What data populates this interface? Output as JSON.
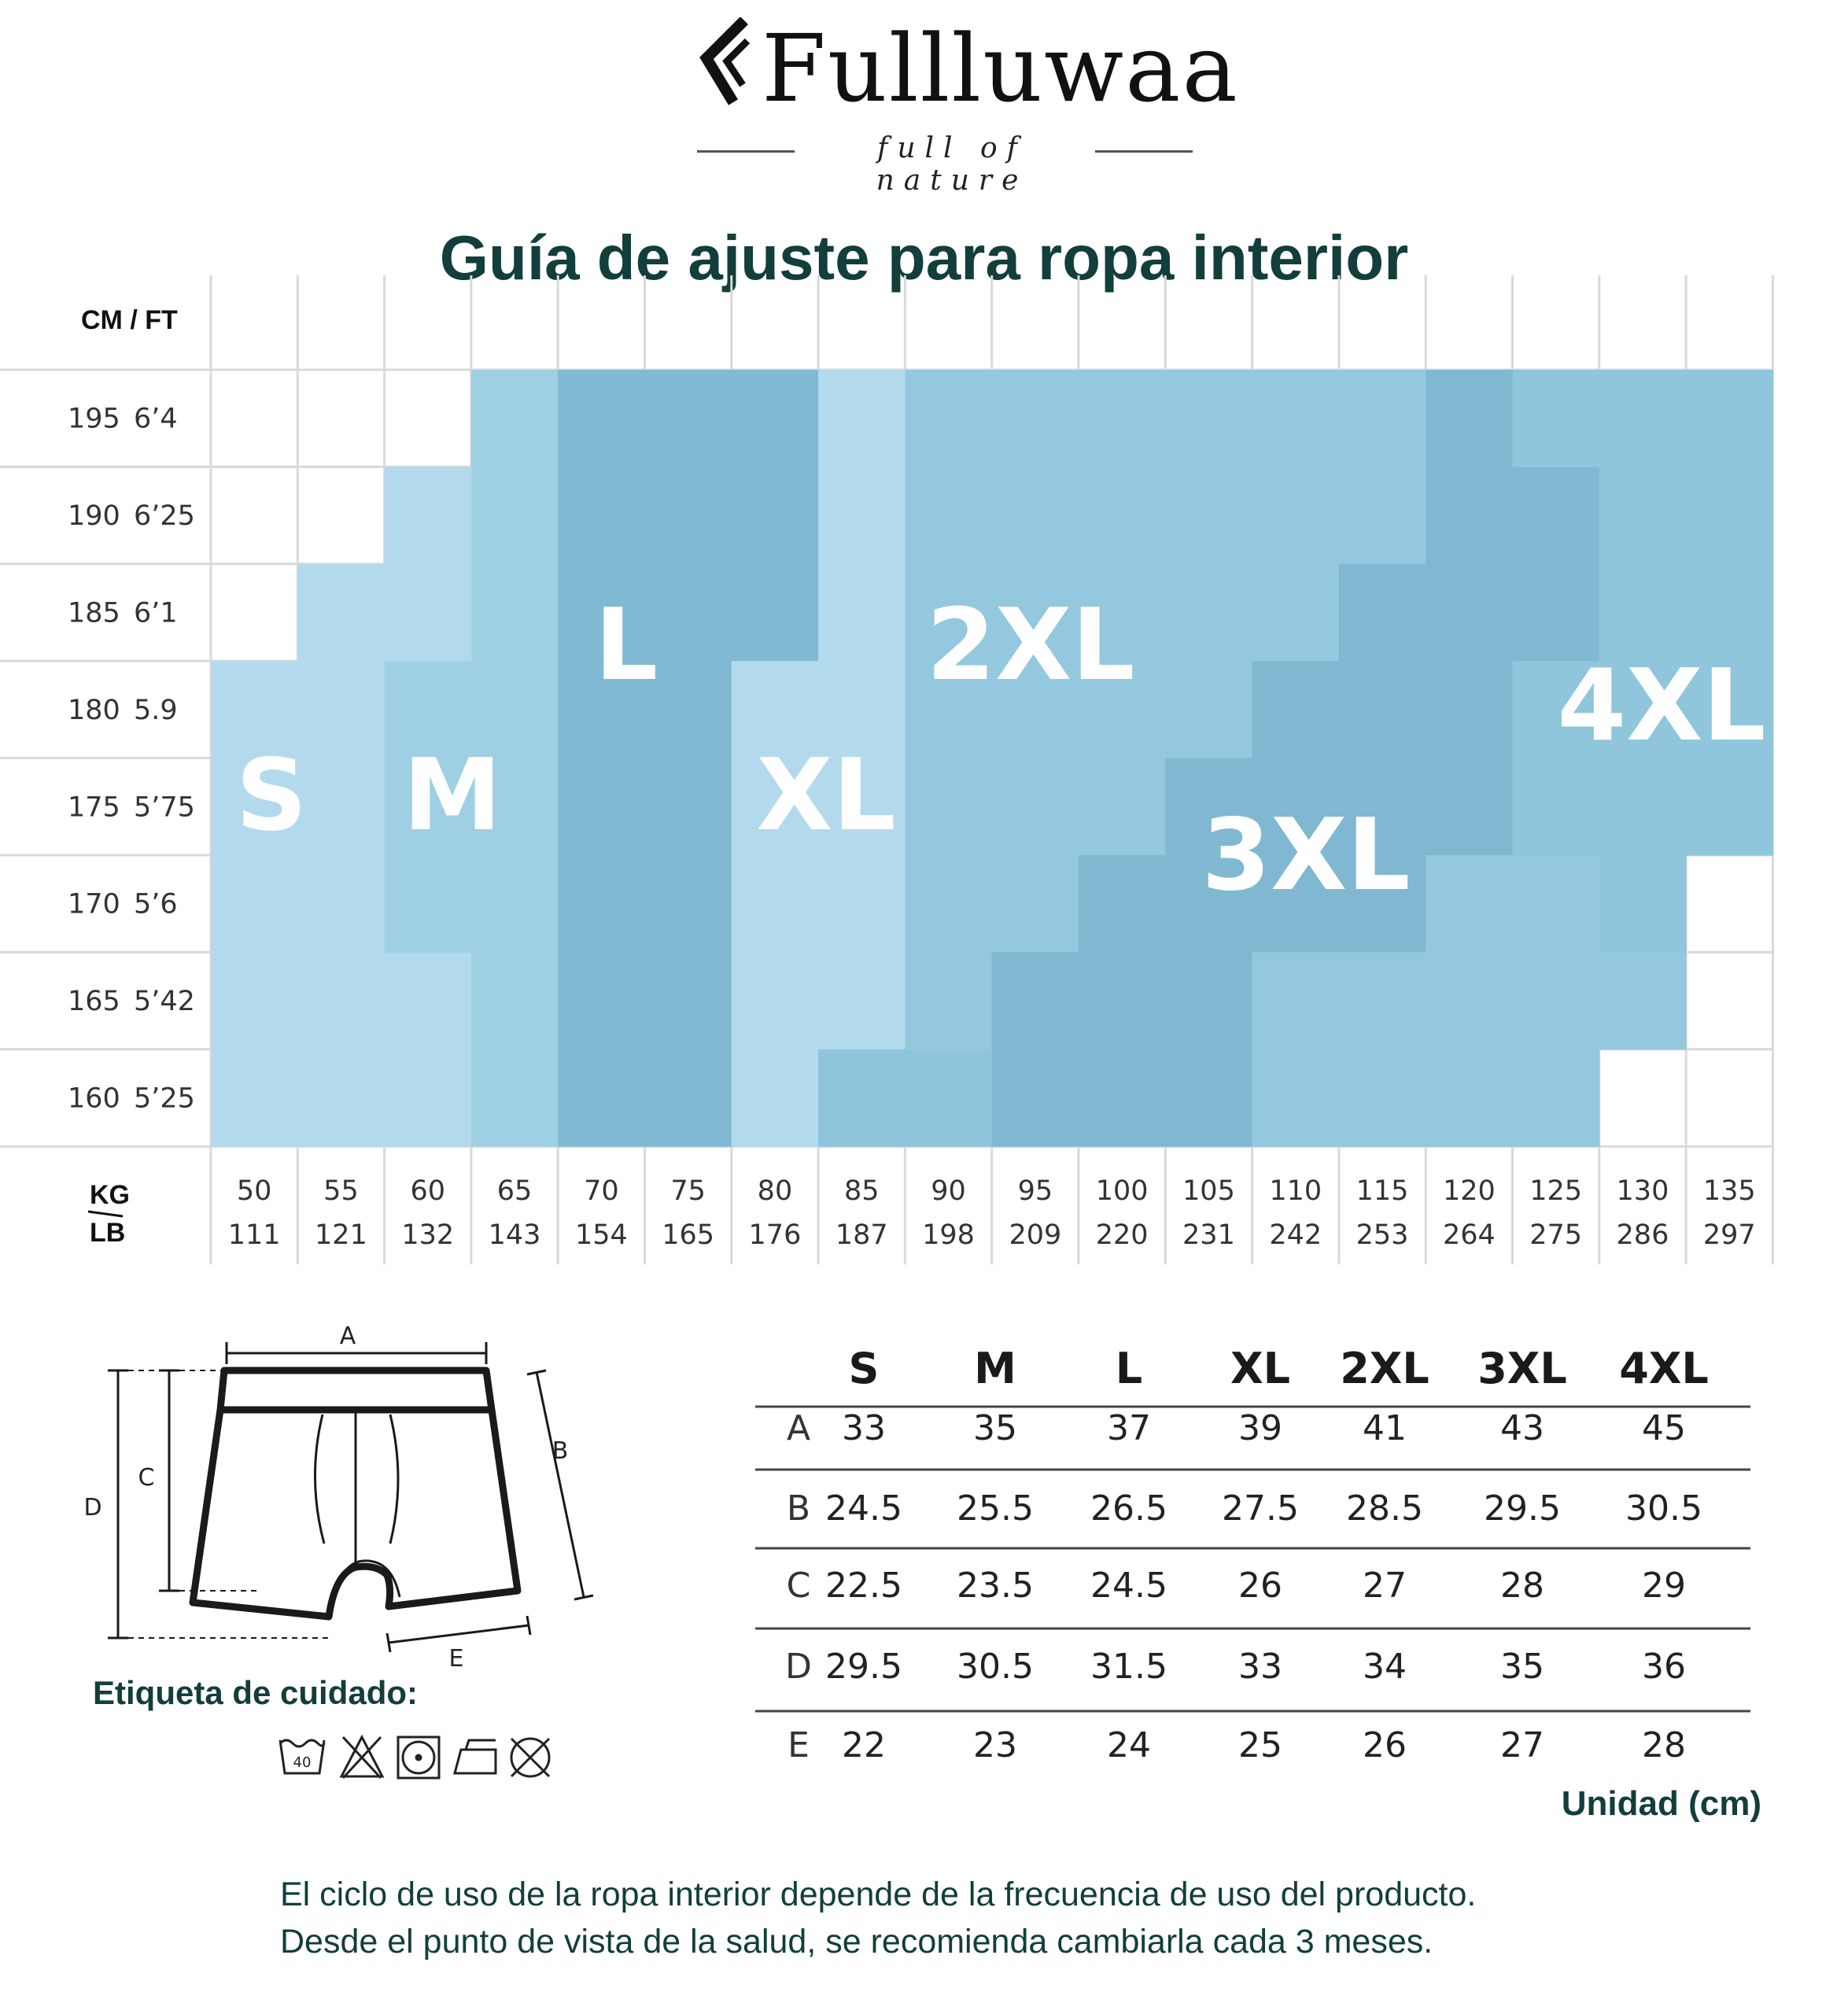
{
  "brand": {
    "name": "Fullluwaa",
    "tagline": "full of nature"
  },
  "title": "Guía de ajuste para ropa interior",
  "height_axis": {
    "label": "CM / FT",
    "rows": [
      {
        "cm": "195",
        "ft": "6’4"
      },
      {
        "cm": "190",
        "ft": "6’25"
      },
      {
        "cm": "185",
        "ft": "6’1"
      },
      {
        "cm": "180",
        "ft": "5.9"
      },
      {
        "cm": "175",
        "ft": "5’75"
      },
      {
        "cm": "170",
        "ft": "5’6"
      },
      {
        "cm": "165",
        "ft": "5’42"
      },
      {
        "cm": "160",
        "ft": "5’25"
      }
    ]
  },
  "weight_axis": {
    "label_top": "KG",
    "label_bottom": "LB",
    "cols": [
      {
        "kg": "50",
        "lb": "111"
      },
      {
        "kg": "55",
        "lb": "121"
      },
      {
        "kg": "60",
        "lb": "132"
      },
      {
        "kg": "65",
        "lb": "143"
      },
      {
        "kg": "70",
        "lb": "154"
      },
      {
        "kg": "75",
        "lb": "165"
      },
      {
        "kg": "80",
        "lb": "176"
      },
      {
        "kg": "85",
        "lb": "187"
      },
      {
        "kg": "90",
        "lb": "198"
      },
      {
        "kg": "95",
        "lb": "209"
      },
      {
        "kg": "100",
        "lb": "220"
      },
      {
        "kg": "105",
        "lb": "231"
      },
      {
        "kg": "110",
        "lb": "242"
      },
      {
        "kg": "115",
        "lb": "253"
      },
      {
        "kg": "120",
        "lb": "264"
      },
      {
        "kg": "125",
        "lb": "275"
      },
      {
        "kg": "130",
        "lb": "286"
      },
      {
        "kg": "135",
        "lb": "297"
      }
    ]
  },
  "fit_zones": [
    {
      "size": "S",
      "color": "#b3daec",
      "columns": [
        [
          0,
          0,
          4
        ],
        [
          1,
          0,
          5
        ],
        [
          2,
          0,
          7
        ],
        [
          3,
          3,
          7
        ]
      ]
    },
    {
      "size": "M",
      "color": "#9fcfe3",
      "columns": [
        [
          2,
          0,
          3
        ],
        [
          3,
          0,
          3
        ],
        [
          4,
          0,
          7
        ],
        [
          5,
          0,
          7
        ]
      ]
    },
    {
      "size": "L",
      "color": "#7fb9d3",
      "columns": [
        [
          6,
          0,
          7
        ],
        [
          7,
          0,
          7
        ],
        [
          8,
          3,
          7
        ],
        [
          9,
          3,
          7
        ]
      ]
    },
    {
      "size": "XL",
      "color": "#b3daec",
      "columns": [
        [
          8,
          0,
          3
        ],
        [
          9,
          0,
          3
        ],
        [
          10,
          0,
          7
        ]
      ]
    },
    {
      "size": "2XL",
      "color": "#93c8de",
      "columns": [
        [
          11,
          0,
          7
        ],
        [
          12,
          0,
          7
        ],
        [
          13,
          0,
          7
        ],
        [
          14,
          0,
          7
        ],
        [
          15,
          0,
          7
        ],
        [
          16,
          0,
          7
        ],
        [
          17,
          0,
          7
        ]
      ]
    },
    {
      "size": "3XL",
      "color": "#80b8d1",
      "columns": [
        [
          15,
          0,
          1
        ],
        [
          16,
          0,
          1
        ],
        [
          17,
          0,
          1
        ],
        [
          18,
          0,
          1
        ]
      ]
    },
    {
      "size": "4XL",
      "color": "#8fc6dc",
      "columns": []
    }
  ],
  "diagram": {
    "labels": [
      "A",
      "B",
      "C",
      "D",
      "E"
    ]
  },
  "care": {
    "title": "Etiqueta de cuidado:",
    "icons": [
      "wash-40-icon",
      "no-bleach-icon",
      "tumble-dry-icon",
      "iron-icon",
      "no-dry-clean-icon"
    ],
    "wash_temp": "40"
  },
  "measure_table": {
    "sizes": [
      "S",
      "M",
      "L",
      "XL",
      "2XL",
      "3XL",
      "4XL"
    ],
    "rows": [
      {
        "key": "A",
        "values": [
          "33",
          "35",
          "37",
          "39",
          "41",
          "43",
          "45"
        ]
      },
      {
        "key": "B",
        "values": [
          "24.5",
          "25.5",
          "26.5",
          "27.5",
          "28.5",
          "29.5",
          "30.5"
        ]
      },
      {
        "key": "C",
        "values": [
          "22.5",
          "23.5",
          "24.5",
          "26",
          "27",
          "28",
          "29"
        ]
      },
      {
        "key": "D",
        "values": [
          "29.5",
          "30.5",
          "31.5",
          "33",
          "34",
          "35",
          "36"
        ]
      },
      {
        "key": "E",
        "values": [
          "22",
          "23",
          "24",
          "25",
          "26",
          "27",
          "28"
        ]
      }
    ],
    "unit": "Unidad (cm)"
  },
  "footnote": {
    "line1": "El ciclo de uso de la ropa interior depende de la frecuencia de uso del producto.",
    "line2": "Desde el punto de vista de la salud, se recomienda cambiarla cada 3 meses."
  }
}
